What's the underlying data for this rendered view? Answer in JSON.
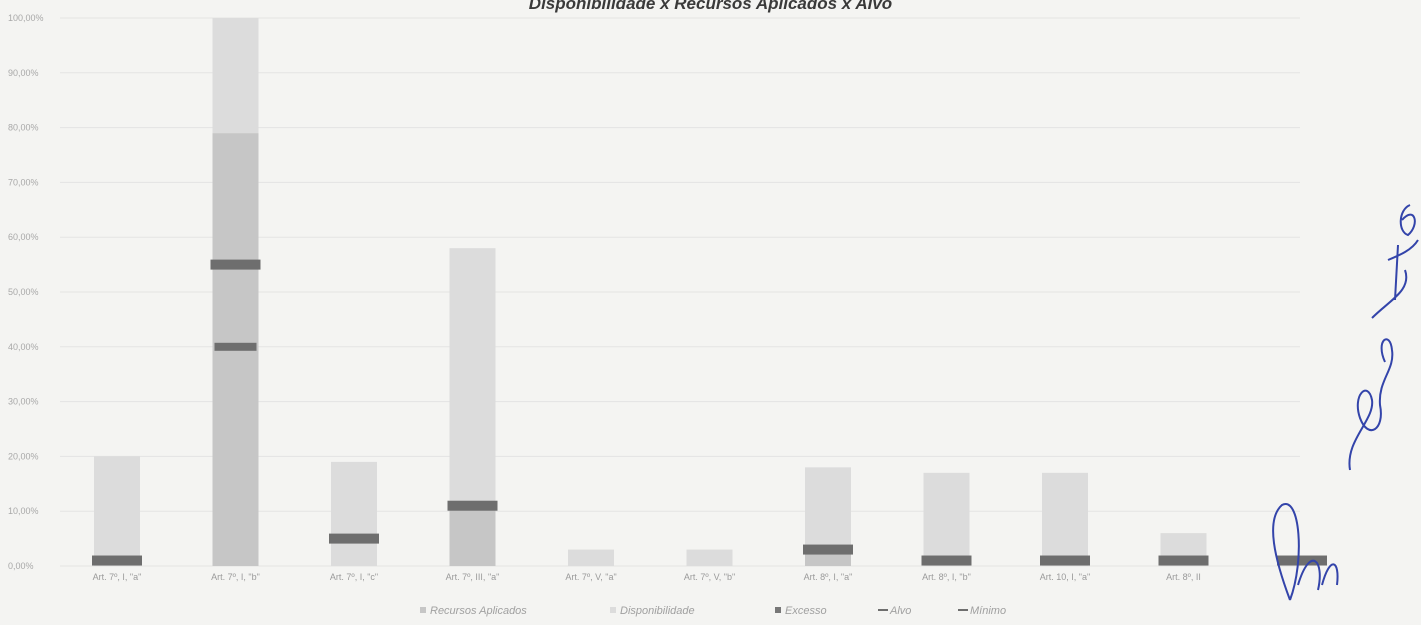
{
  "chart_data": {
    "type": "bar",
    "title": "Disponibilidade x Recursos Aplicados x Alvo",
    "y_ticks": [
      "0,00%",
      "10,00%",
      "20,00%",
      "30,00%",
      "40,00%",
      "50,00%",
      "60,00%",
      "70,00%",
      "80,00%",
      "90,00%",
      "100,00%"
    ],
    "ylim": [
      0,
      100
    ],
    "categories": [
      "Art. 7º, I, \"a\"",
      "Art. 7º, I, \"b\"",
      "Art. 7º, I, \"c\"",
      "Art. 7º, III, \"a\"",
      "Art. 7º, V, \"a\"",
      "Art. 7º, V, \"b\"",
      "Art. 8º, I, \"a\"",
      "Art. 8º, I, \"b\"",
      "Art. 10, I, \"a\"",
      "Art. 8º, II",
      ""
    ],
    "series": [
      {
        "name": "Recursos Aplicados",
        "values": [
          0,
          79,
          0,
          11,
          0,
          0,
          3,
          0,
          0,
          0,
          0
        ],
        "color": "#c6c6c6"
      },
      {
        "name": "Disponibilidade",
        "values": [
          20,
          21,
          19,
          47,
          3,
          3,
          15,
          17,
          17,
          6,
          0
        ],
        "color": "#dcdcdc"
      },
      {
        "name": "Excesso",
        "values": [
          0,
          0,
          0,
          0,
          0,
          0,
          0,
          0,
          0,
          0,
          0
        ],
        "color": "#777777"
      },
      {
        "name": "Alvo",
        "values": [
          1,
          55,
          5,
          11,
          0,
          0,
          3,
          1,
          1,
          1,
          1
        ],
        "color": "#6e6e6e"
      },
      {
        "name": "Mínimo",
        "values": [
          0,
          40,
          0,
          0,
          0,
          0,
          0,
          0,
          0,
          0,
          0
        ],
        "color": "#6e6e6e"
      }
    ],
    "grid": true,
    "legend_position": "bottom"
  }
}
